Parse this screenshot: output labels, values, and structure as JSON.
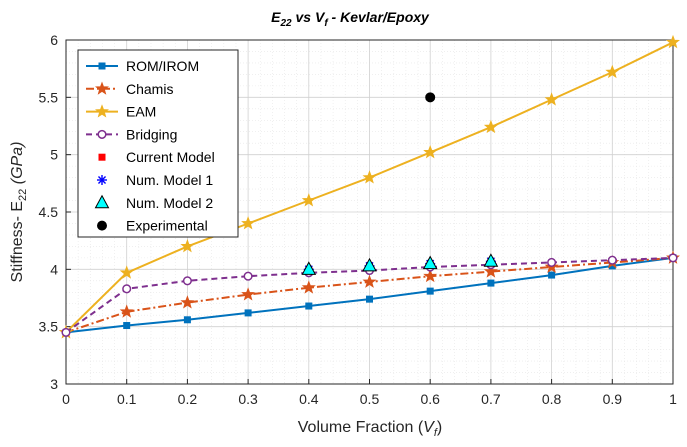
{
  "chart_data": {
    "type": "line",
    "title": {
      "main": "E",
      "main_sub": "22",
      "vs": " vs V",
      "vs_sub": "f",
      "rest": " -  Kevlar/Epoxy"
    },
    "xlabel": {
      "main": "Volume Fraction (",
      "italic": "V",
      "sub": "f",
      "close": ")"
    },
    "ylabel": {
      "main": "Stiffness- E",
      "sub": "22",
      "unit": " (GPa)"
    },
    "xlim": [
      0,
      1
    ],
    "ylim": [
      3,
      6
    ],
    "xticks": [
      "0",
      "0.1",
      "0.2",
      "0.3",
      "0.4",
      "0.5",
      "0.6",
      "0.7",
      "0.8",
      "0.9",
      "1"
    ],
    "yticks": [
      "3",
      "3.5",
      "4",
      "4.5",
      "5",
      "5.5",
      "6"
    ],
    "grid": true,
    "minor_grid": true,
    "legend_position": "top-left",
    "series": [
      {
        "name": "ROM/IROM",
        "color": "#0072BD",
        "line": "solid",
        "marker": "filled-square",
        "x": [
          0,
          0.1,
          0.2,
          0.3,
          0.4,
          0.5,
          0.6,
          0.7,
          0.8,
          0.9,
          1
        ],
        "y": [
          3.45,
          3.51,
          3.56,
          3.62,
          3.68,
          3.74,
          3.81,
          3.88,
          3.95,
          4.03,
          4.1
        ]
      },
      {
        "name": "Chamis",
        "color": "#D95319",
        "line": "dashdot",
        "marker": "star",
        "x": [
          0,
          0.1,
          0.2,
          0.3,
          0.4,
          0.5,
          0.6,
          0.7,
          0.8,
          0.9,
          1
        ],
        "y": [
          3.45,
          3.63,
          3.71,
          3.78,
          3.84,
          3.89,
          3.94,
          3.98,
          4.02,
          4.06,
          4.1
        ]
      },
      {
        "name": "EAM",
        "color": "#EDB120",
        "line": "solid",
        "marker": "star",
        "x": [
          0,
          0.1,
          0.2,
          0.3,
          0.4,
          0.5,
          0.6,
          0.7,
          0.8,
          0.9,
          1
        ],
        "y": [
          3.45,
          3.97,
          4.2,
          4.4,
          4.6,
          4.8,
          5.02,
          5.24,
          5.48,
          5.72,
          5.98
        ]
      },
      {
        "name": "Bridging",
        "color": "#7E2F8E",
        "line": "dashed",
        "marker": "open-circle",
        "x": [
          0,
          0.1,
          0.2,
          0.3,
          0.4,
          0.5,
          0.6,
          0.7,
          0.8,
          0.9,
          1
        ],
        "y": [
          3.45,
          3.83,
          3.9,
          3.94,
          3.97,
          3.99,
          4.02,
          4.04,
          4.06,
          4.08,
          4.1
        ]
      },
      {
        "name": "Current Model",
        "color": "#FF0000",
        "line": "none",
        "marker": "filled-square",
        "x": [
          0.4,
          0.5,
          0.6,
          0.7
        ],
        "y": [
          3.99,
          4.03,
          4.05,
          4.07
        ]
      },
      {
        "name": "Num. Model 1",
        "color": "#0000FF",
        "line": "none",
        "marker": "asterisk",
        "x": [
          0.4,
          0.5,
          0.6,
          0.7
        ],
        "y": [
          4.0,
          4.03,
          4.05,
          4.07
        ]
      },
      {
        "name": "Num. Model 2",
        "color": "#00FFFF",
        "line": "none",
        "marker": "triangle",
        "x": [
          0.4,
          0.5,
          0.6,
          0.7
        ],
        "y": [
          4.0,
          4.03,
          4.05,
          4.07
        ]
      },
      {
        "name": "Experimental",
        "color": "#000000",
        "line": "none",
        "marker": "filled-circle",
        "x": [
          0.6
        ],
        "y": [
          5.5
        ]
      }
    ]
  }
}
